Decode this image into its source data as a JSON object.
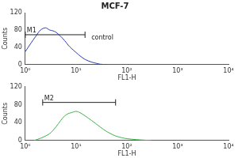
{
  "chart_data": [
    {
      "type": "line",
      "title": "MCF-7",
      "x_label": "FL1-H",
      "y_label": "Counts",
      "log": "x",
      "grid": false,
      "xlim": [
        1,
        10000
      ],
      "xticks": [
        {
          "value": 1,
          "label": "10⁰"
        },
        {
          "value": 10,
          "label": "10¹"
        },
        {
          "value": 100,
          "label": "10²"
        },
        {
          "value": 1000,
          "label": "10³"
        },
        {
          "value": 10000,
          "label": "10⁴"
        }
      ],
      "ylim": [
        0,
        120
      ],
      "yticks": [
        0,
        40,
        80,
        120
      ],
      "series": [
        {
          "color": "#2a3cb5",
          "x": [
            1,
            1.3,
            1.6,
            2,
            2.5,
            3,
            3.5,
            4,
            5,
            6,
            7,
            8,
            10,
            12,
            15,
            20,
            25,
            30,
            40
          ],
          "values": [
            30,
            50,
            65,
            80,
            85,
            80,
            78,
            75,
            65,
            55,
            45,
            38,
            28,
            20,
            12,
            6,
            3,
            1,
            0
          ]
        }
      ],
      "gate": {
        "label": "M1",
        "range": [
          1,
          15
        ],
        "y": 69
      },
      "annotations": [
        {
          "text": "control",
          "x": 20,
          "y": 62
        }
      ]
    },
    {
      "type": "line",
      "x_label": "FL1-H",
      "y_label": "Counts",
      "log": "x",
      "grid": false,
      "xlim": [
        1,
        10000
      ],
      "xticks": [
        {
          "value": 1,
          "label": "10⁰"
        },
        {
          "value": 10,
          "label": "10¹"
        },
        {
          "value": 100,
          "label": "10²"
        },
        {
          "value": 1000,
          "label": "10³"
        },
        {
          "value": 10000,
          "label": "10⁴"
        }
      ],
      "ylim": [
        0,
        120
      ],
      "yticks": [
        0,
        40,
        80,
        120
      ],
      "series": [
        {
          "color": "#3cb54a",
          "x": [
            1.5,
            2,
            3,
            4,
            5,
            6,
            7,
            8,
            10,
            12,
            15,
            20,
            30,
            40,
            60,
            80,
            100,
            150,
            200,
            300
          ],
          "values": [
            0,
            5,
            15,
            30,
            45,
            55,
            60,
            62,
            65,
            62,
            55,
            45,
            30,
            20,
            10,
            6,
            4,
            2,
            1,
            0
          ]
        }
      ],
      "gate": {
        "label": "M2",
        "range": [
          2.2,
          60
        ],
        "y": 85
      }
    }
  ]
}
